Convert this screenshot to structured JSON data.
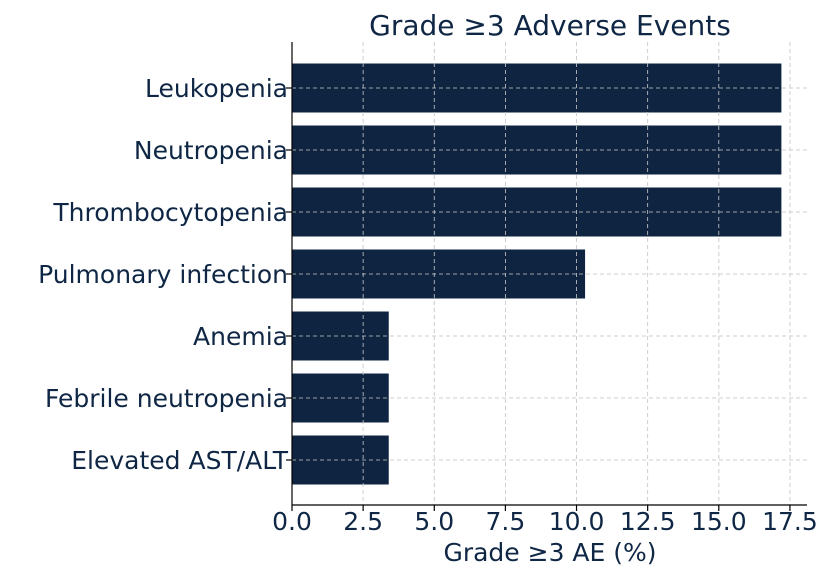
{
  "chart_data": {
    "type": "bar",
    "orientation": "horizontal",
    "title": "Grade ≥3 Adverse Events",
    "xlabel": "Grade ≥3 AE (%)",
    "ylabel": "",
    "categories": [
      "Leukopenia",
      "Neutropenia",
      "Thrombocytopenia",
      "Pulmonary infection",
      "Anemia",
      "Febrile neutropenia",
      "Elevated AST/ALT"
    ],
    "values": [
      17.2,
      17.2,
      17.2,
      10.3,
      3.4,
      3.4,
      3.4
    ],
    "xlim": [
      0,
      18.1
    ],
    "xticks": [
      "0.0",
      "2.5",
      "5.0",
      "7.5",
      "10.0",
      "12.5",
      "15.0",
      "17.5"
    ],
    "grid": true,
    "bar_color": "#0f2441"
  }
}
